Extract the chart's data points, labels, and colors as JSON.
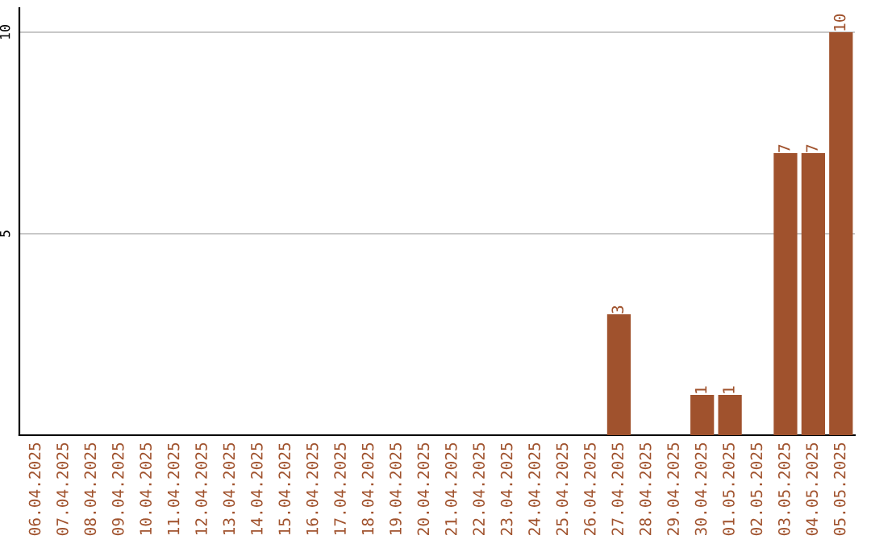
{
  "chart_data": {
    "type": "bar",
    "categories": [
      "06.04.2025",
      "07.04.2025",
      "08.04.2025",
      "09.04.2025",
      "10.04.2025",
      "11.04.2025",
      "12.04.2025",
      "13.04.2025",
      "14.04.2025",
      "15.04.2025",
      "16.04.2025",
      "17.04.2025",
      "18.04.2025",
      "19.04.2025",
      "20.04.2025",
      "21.04.2025",
      "22.04.2025",
      "23.04.2025",
      "24.04.2025",
      "25.04.2025",
      "26.04.2025",
      "27.04.2025",
      "28.04.2025",
      "29.04.2025",
      "30.04.2025",
      "01.05.2025",
      "02.05.2025",
      "03.05.2025",
      "04.05.2025",
      "05.05.2025"
    ],
    "values": [
      0,
      0,
      0,
      0,
      0,
      0,
      0,
      0,
      0,
      0,
      0,
      0,
      0,
      0,
      0,
      0,
      0,
      0,
      0,
      0,
      0,
      3,
      0,
      0,
      1,
      1,
      0,
      7,
      7,
      10
    ],
    "value_labels": [
      null,
      null,
      null,
      null,
      null,
      null,
      null,
      null,
      null,
      null,
      null,
      null,
      null,
      null,
      null,
      null,
      null,
      null,
      null,
      null,
      null,
      "3",
      null,
      null,
      "1",
      "1",
      null,
      "7",
      "7",
      "10"
    ],
    "color": "#a0522d",
    "ylim": [
      0,
      10.6
    ],
    "yticks": [
      5,
      10
    ],
    "grid": "y"
  }
}
